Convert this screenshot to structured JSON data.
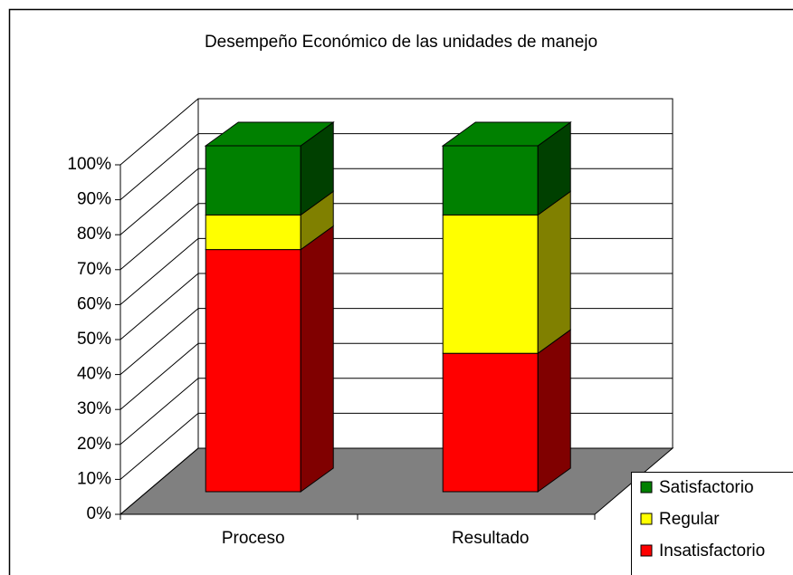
{
  "chart_data": {
    "type": "bar",
    "stacked": true,
    "title": "Desempeño Económico de las unidades de manejo",
    "categories": [
      "Proceso",
      "Resultado"
    ],
    "series": [
      {
        "name": "Insatisfactorio",
        "color": "#ff0000",
        "side_color": "#800000",
        "values": [
          70,
          40
        ]
      },
      {
        "name": "Regular",
        "color": "#ffff00",
        "side_color": "#808000",
        "values": [
          10,
          40
        ]
      },
      {
        "name": "Satisfactorio",
        "color": "#008000",
        "side_color": "#004000",
        "values": [
          20,
          20
        ]
      }
    ],
    "ylim": [
      0,
      100
    ],
    "yticks": [
      {
        "value": 0,
        "label": "0%"
      },
      {
        "value": 10,
        "label": "10%"
      },
      {
        "value": 20,
        "label": "20%"
      },
      {
        "value": 30,
        "label": "30%"
      },
      {
        "value": 40,
        "label": "40%"
      },
      {
        "value": 50,
        "label": "50%"
      },
      {
        "value": 60,
        "label": "60%"
      },
      {
        "value": 70,
        "label": "70%"
      },
      {
        "value": 80,
        "label": "80%"
      },
      {
        "value": 90,
        "label": "90%"
      },
      {
        "value": 100,
        "label": "100%"
      }
    ],
    "grid": true,
    "legend": "bottom-right"
  }
}
